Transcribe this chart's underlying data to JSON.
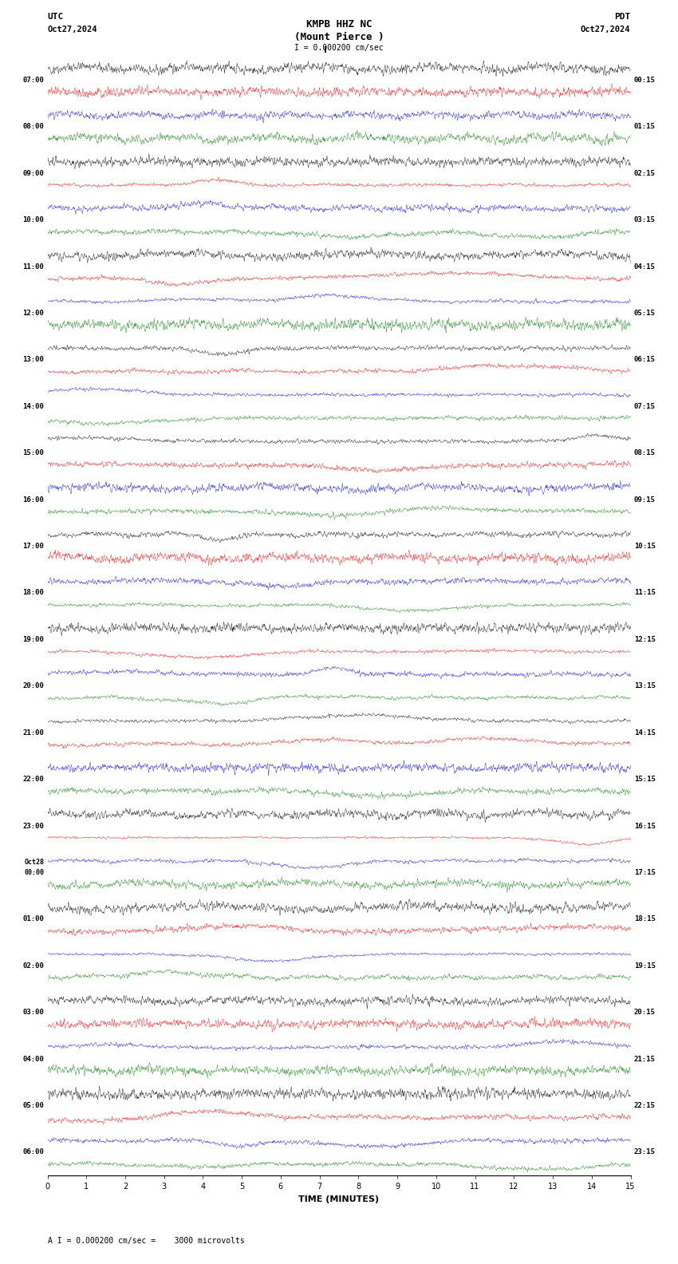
{
  "title_line1": "KMPB HHZ NC",
  "title_line2": "(Mount Pierce )",
  "scale_label": "I = 0.000200 cm/sec",
  "utc_label": "UTC",
  "pdt_label": "PDT",
  "date_left": "Oct27,2024",
  "date_right": "Oct27,2024",
  "bottom_label": "A I = 0.000200 cm/sec =    3000 microvolts",
  "xlabel": "TIME (MINUTES)",
  "left_times_utc": [
    "07:00",
    "08:00",
    "09:00",
    "10:00",
    "11:00",
    "12:00",
    "13:00",
    "14:00",
    "15:00",
    "16:00",
    "17:00",
    "18:00",
    "19:00",
    "20:00",
    "21:00",
    "22:00",
    "23:00",
    "Oct28\n00:00",
    "01:00",
    "02:00",
    "03:00",
    "04:00",
    "05:00",
    "06:00"
  ],
  "right_times_pdt": [
    "00:15",
    "01:15",
    "02:15",
    "03:15",
    "04:15",
    "05:15",
    "06:15",
    "07:15",
    "08:15",
    "09:15",
    "10:15",
    "11:15",
    "12:15",
    "13:15",
    "14:15",
    "15:15",
    "16:15",
    "17:15",
    "18:15",
    "19:15",
    "20:15",
    "21:15",
    "22:15",
    "23:15"
  ],
  "num_rows": 48,
  "minutes_per_row": 15,
  "total_minutes": 15,
  "colors": [
    "#000000",
    "#ff0000",
    "#0000ff",
    "#008000"
  ],
  "bg_color": "#ffffff",
  "trace_amplitude": 0.35,
  "seed": 42
}
